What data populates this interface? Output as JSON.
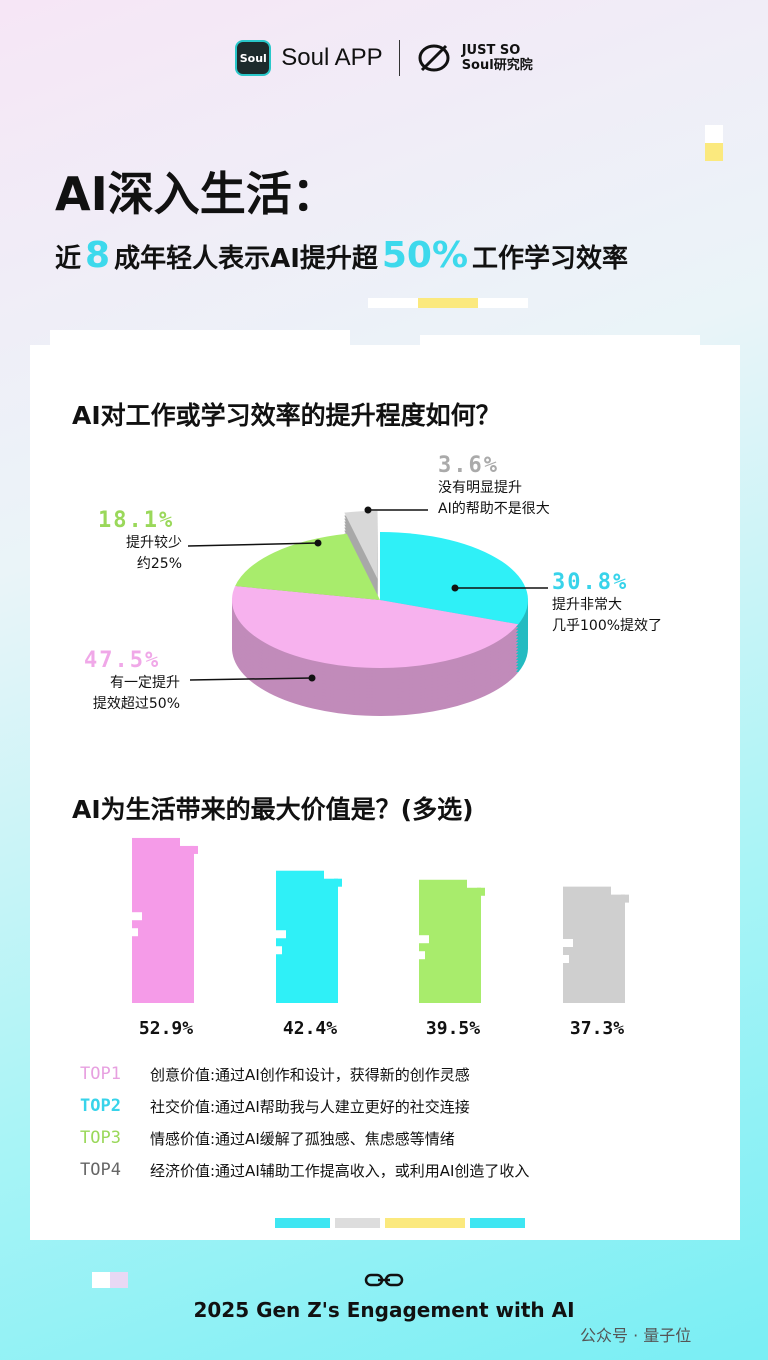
{
  "header": {
    "app_logo_text": "Soul",
    "app_name": "Soul APP",
    "institute_line1": "JUST SO",
    "institute_line2": "Soul研究院"
  },
  "title": "AI深入生活：",
  "subtitle": {
    "pre": "近",
    "num1": "8",
    "mid": "成年轻人表示AI提升超",
    "num2": "50%",
    "post": "工作学习效率"
  },
  "colors": {
    "pink": "#f59be8",
    "cyan": "#2ff0f7",
    "green": "#a8ec6c",
    "gray": "#cfcfcf"
  },
  "chart_data": [
    {
      "type": "pie",
      "title": "AI对工作或学习效率的提升程度如何？",
      "slices": [
        {
          "pct_label": "30.8%",
          "value": 30.8,
          "label_line1": "提升非常大",
          "label_line2": "几乎100%提效了",
          "color": "#2ff0f7"
        },
        {
          "pct_label": "47.5%",
          "value": 47.5,
          "label_line1": "有一定提升",
          "label_line2": "提效超过50%",
          "color": "#f7b2ee"
        },
        {
          "pct_label": "18.1%",
          "value": 18.1,
          "label_line1": "提升较少",
          "label_line2": "约25%",
          "color": "#a8ec6c"
        },
        {
          "pct_label": "3.6%",
          "value": 3.6,
          "label_line1": "没有明显提升",
          "label_line2": "AI的帮助不是很大",
          "color": "#d8d8d8"
        }
      ]
    },
    {
      "type": "bar",
      "title": "AI为生活带来的最大价值是？(多选)",
      "categories": [
        "TOP1",
        "TOP2",
        "TOP3",
        "TOP4"
      ],
      "values": [
        52.9,
        42.4,
        39.5,
        37.3
      ],
      "value_labels": [
        "52.9%",
        "42.4%",
        "39.5%",
        "37.3%"
      ],
      "colors": [
        "#f59be8",
        "#2ff0f7",
        "#a8ec6c",
        "#cfcfcf"
      ],
      "legend": [
        {
          "tag": "TOP1",
          "text": "创意价值:通过AI创作和设计，获得新的创作灵感",
          "color": "#e7a0e0"
        },
        {
          "tag": "TOP2",
          "text": "社交价值:通过AI帮助我与人建立更好的社交连接",
          "color": "#38d3ea"
        },
        {
          "tag": "TOP3",
          "text": "情感价值:通过AI缓解了孤独感、焦虑感等情绪",
          "color": "#9ad85a"
        },
        {
          "tag": "TOP4",
          "text": "经济价值:通过AI辅助工作提高收入，或利用AI创造了收入",
          "color": "#666666"
        }
      ]
    }
  ],
  "footer": {
    "text": "2025 Gen Z's Engagement with AI",
    "watermark": "公众号 · 量子位"
  }
}
